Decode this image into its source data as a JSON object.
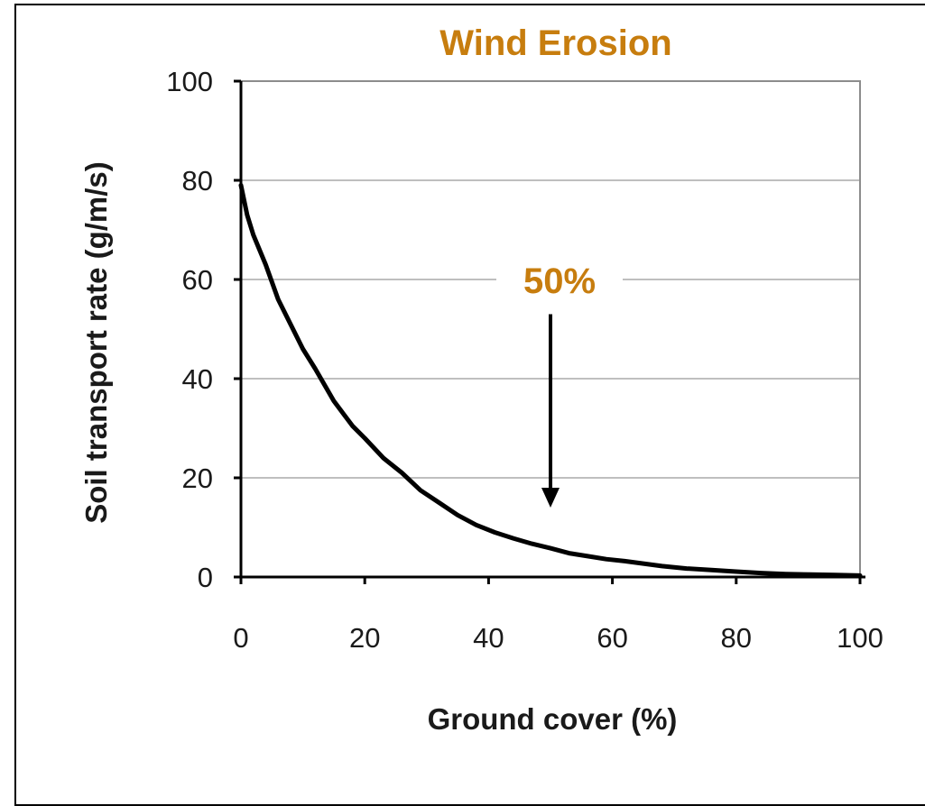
{
  "chart_data": {
    "type": "line",
    "title": "Wind Erosion",
    "xlabel": "Ground cover (%)",
    "ylabel": "Soil transport rate (g/m/s)",
    "xlim": [
      0,
      100
    ],
    "ylim": [
      0,
      100
    ],
    "x_ticks": [
      0,
      20,
      40,
      60,
      80,
      100
    ],
    "y_ticks": [
      0,
      20,
      40,
      60,
      80,
      100
    ],
    "grid": "horizontal",
    "legend": "none",
    "series": [
      {
        "x": [
          0,
          1,
          2,
          4,
          6,
          8,
          10,
          12,
          15,
          18,
          20,
          23,
          26,
          29,
          32,
          35,
          38,
          41,
          44,
          47,
          50,
          53,
          56,
          59,
          62,
          65,
          68,
          72,
          76,
          80,
          84,
          88,
          92,
          96,
          100
        ],
        "y": [
          79,
          73,
          69,
          63,
          56,
          51,
          46,
          42,
          35.5,
          30.5,
          28,
          24,
          21,
          17.5,
          15,
          12.5,
          10.5,
          9,
          7.8,
          6.7,
          5.8,
          4.8,
          4.2,
          3.6,
          3.2,
          2.7,
          2.2,
          1.7,
          1.4,
          1.1,
          0.8,
          0.6,
          0.5,
          0.4,
          0.3
        ]
      }
    ],
    "annotation": {
      "text": "50%",
      "x": 50,
      "arrow_from_y": 53,
      "arrow_to_y": 14
    },
    "colors": {
      "title": "#c77d0e",
      "annotation": "#c77d0e",
      "line": "#000000",
      "grid": "#bfbfbf",
      "plot_border": "#8c8c8c"
    }
  }
}
